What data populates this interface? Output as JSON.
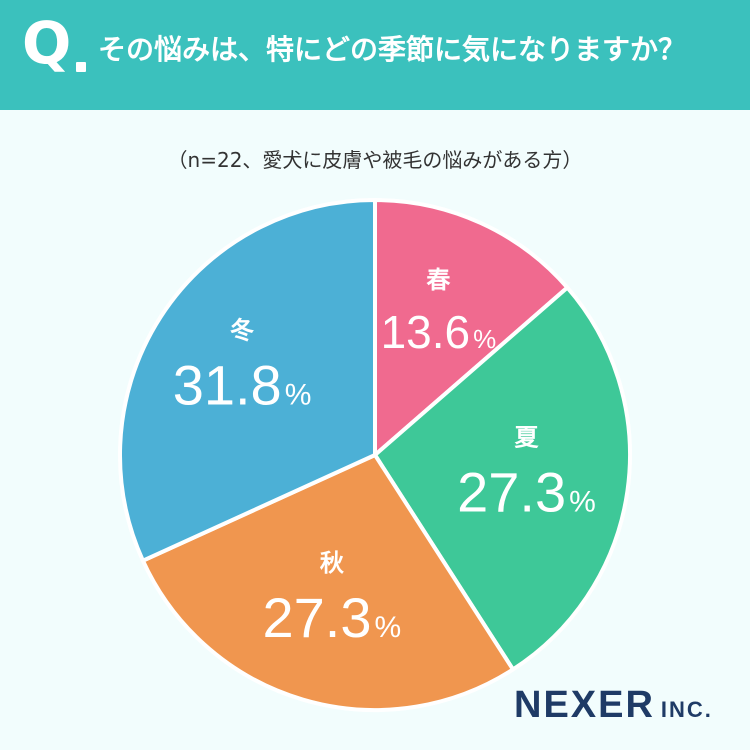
{
  "header": {
    "q_mark": "Q",
    "question": "その悩みは、特にどの季節に気になりますか？"
  },
  "subtitle": "（n=22、愛犬に皮膚や被毛の悩みがある方）",
  "chart_data": {
    "type": "pie",
    "categories": [
      "春",
      "夏",
      "秋",
      "冬"
    ],
    "values": [
      13.6,
      27.3,
      27.3,
      31.8
    ],
    "value_labels": [
      "13.6",
      "27.3",
      "27.3",
      "31.8"
    ],
    "unit": "%",
    "colors": [
      "#f06a8f",
      "#3ec898",
      "#f0964f",
      "#4cb0d6"
    ],
    "start": "12 o'clock",
    "direction": "clockwise"
  },
  "logo": {
    "main": "NEXER",
    "sub": "INC."
  }
}
